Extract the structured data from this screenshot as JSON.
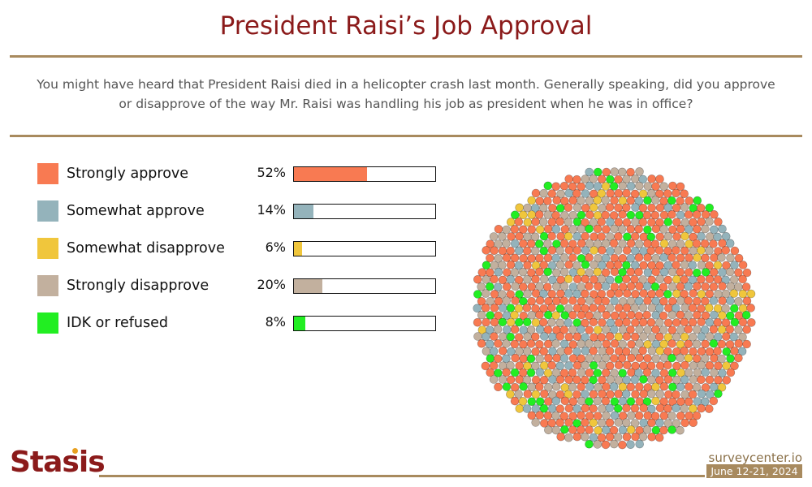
{
  "title": "President Raisi’s Job Approval",
  "question": "You might have heard that President Raisi died in a helicopter crash last month. Generally speaking, did you approve or disapprove of the way Mr. Raisi was handling his job as president when he was in office?",
  "chart_data": {
    "type": "bar",
    "categories": [
      "Strongly approve",
      "Somewhat approve",
      "Somewhat disapprove",
      "Strongly disapprove",
      "IDK or refused"
    ],
    "values": [
      52,
      14,
      6,
      20,
      8
    ],
    "value_labels": [
      "52%",
      "14%",
      "6%",
      "20%",
      "8%"
    ],
    "colors": [
      "#f87a52",
      "#94b3bb",
      "#f0c63c",
      "#c2b09e",
      "#22ee22"
    ],
    "xlim": [
      0,
      100
    ],
    "legend_placement": "left",
    "grid": false
  },
  "footer": {
    "logo": "Stasis",
    "site": "surveycenter.io",
    "date": "June 12-21, 2024"
  }
}
